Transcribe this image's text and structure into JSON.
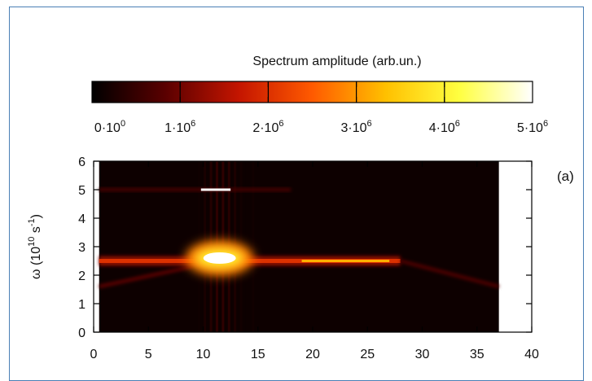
{
  "chart_data": {
    "type": "heatmap",
    "panel_label": "(a)",
    "colorbar": {
      "title": "Spectrum amplitude (arb.un.)",
      "range": [
        0,
        5000000
      ],
      "colors": [
        "#000000",
        "#5a0000",
        "#c41500",
        "#ff5a00",
        "#ffc000",
        "#ffff40",
        "#ffffff"
      ],
      "tick_labels": [
        {
          "base": "0·10",
          "exp": "0"
        },
        {
          "base": "1·10",
          "exp": "6"
        },
        {
          "base": "2·10",
          "exp": "6"
        },
        {
          "base": "3·10",
          "exp": "6"
        },
        {
          "base": "4·10",
          "exp": "6"
        },
        {
          "base": "5·10",
          "exp": "6"
        }
      ]
    },
    "x_axis": {
      "range": [
        0,
        40
      ],
      "ticks": [
        0,
        5,
        10,
        15,
        20,
        25,
        30,
        35,
        40
      ],
      "label": ""
    },
    "y_axis": {
      "range": [
        0,
        6
      ],
      "ticks": [
        0,
        1,
        2,
        3,
        4,
        5,
        6
      ],
      "label_base": "ω (10",
      "label_exp": "10",
      "label_unit": " s",
      "label_unit_exp": "-1",
      "label_close": ")"
    },
    "data_x_range": [
      0.5,
      37
    ],
    "features": [
      {
        "name": "main band",
        "y": 2.5,
        "x_from": 0.5,
        "x_to": 28,
        "amplitude": 2000000
      },
      {
        "name": "descending tail",
        "from": [
          28,
          2.5
        ],
        "to": [
          37,
          1.6
        ],
        "amplitude": 800000
      },
      {
        "name": "lower branch",
        "from": [
          0.5,
          1.6
        ],
        "to": [
          9,
          2.3
        ],
        "amplitude": 900000
      },
      {
        "name": "second harmonic",
        "y": 5.0,
        "x_from": 0.5,
        "x_to": 18,
        "amplitude": 700000
      },
      {
        "name": "hot spot",
        "x": 11.5,
        "y": 2.6,
        "amplitude": 5000000
      },
      {
        "name": "vertical streaks",
        "x_from": 9.5,
        "x_to": 14.5,
        "amplitude": 700000
      }
    ]
  }
}
